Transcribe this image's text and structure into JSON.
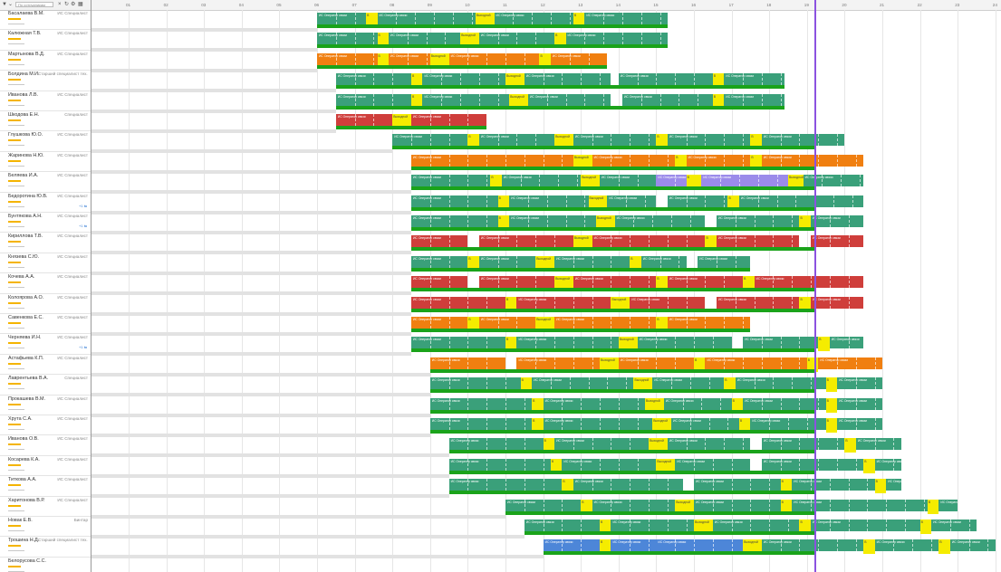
{
  "filter": {
    "search_placeholder": "По сотрудникам",
    "icon_filter": "filter-icon",
    "icon_refresh": "refresh-icon",
    "icon_settings": "settings-icon"
  },
  "ruler_days": [
    "01",
    "02",
    "03",
    "04",
    "05",
    "06",
    "07",
    "08",
    "09",
    "10",
    "11",
    "12",
    "13",
    "14",
    "15",
    "16",
    "17",
    "18",
    "19",
    "20",
    "21",
    "22",
    "23",
    "24"
  ],
  "colors": {
    "teal": "#3aa07a",
    "orange": "#f07f10",
    "red": "#cf3e3b",
    "purple": "#9b8bea",
    "blue": "#4d86d8",
    "lightblue": "#8ab5ea",
    "yellow": "#f5ec00",
    "green": "#1aa31a",
    "today_line": "#8b52e0"
  },
  "people": [
    {
      "name": "Басалаева В.М.",
      "role": "ИС Специалист"
    },
    {
      "name": "Калюжная Т.В.",
      "role": "ИС Специалист"
    },
    {
      "name": "Мартынова В.Д.",
      "role": "ИС Специалист"
    },
    {
      "name": "Болдина М.И.",
      "role": "Старший специалист тех..."
    },
    {
      "name": "Иванова Л.В.",
      "role": "ИС Специалист"
    },
    {
      "name": "Шкодова Е.Н.",
      "role": "Специалист"
    },
    {
      "name": "Глушкова Ю.О.",
      "role": "ИС Специалист"
    },
    {
      "name": "Жаринова Н.Ю.",
      "role": "ИС Специалист"
    },
    {
      "name": "Беляева И.А.",
      "role": "ИС Специалист"
    },
    {
      "name": "Бедоротина Ю.В.",
      "role": "ИС Специалист",
      "extra": "+1 ⇆"
    },
    {
      "name": "Бунтякова А.Н.",
      "role": "ИС Специалист",
      "extra": "+1 ⇆"
    },
    {
      "name": "Кириллова Т.В.",
      "role": "ИС Специалист"
    },
    {
      "name": "Князева С.Ю.",
      "role": "ИС Специалист"
    },
    {
      "name": "Кочева А.А.",
      "role": "ИС Специалист"
    },
    {
      "name": "Колоярова А.О.",
      "role": "ИС Специалист"
    },
    {
      "name": "Савенкова Е.С.",
      "role": "ИС Специалист"
    },
    {
      "name": "Черняева И.Н.",
      "role": "ИС Специалист",
      "extra": "+1 ⇆"
    },
    {
      "name": "Астафьева К.П.",
      "role": "ИС Специалист"
    },
    {
      "name": "Лаврентьева В.А.",
      "role": "Специалист"
    },
    {
      "name": "Прокашева В.М.",
      "role": "ИС Специалист"
    },
    {
      "name": "Хрута С.А.",
      "role": "ИС Специалист"
    },
    {
      "name": "Иванова О.В.",
      "role": "ИС Специалист"
    },
    {
      "name": "Косарева К.А.",
      "role": "ИС Специалист"
    },
    {
      "name": "Титкова А.А.",
      "role": "ИС Специалист"
    },
    {
      "name": "Харитонова В.Р.",
      "role": "ИС Специалист"
    },
    {
      "name": "Новак Е.В.",
      "role": "Бинтар"
    },
    {
      "name": "Трошина Н.Д.",
      "role": "Старший специалист тех..."
    },
    {
      "name": "Белорусова С.С.",
      "role": ""
    }
  ],
  "rows": [
    {
      "segs": [
        [
          "teal",
          6.0,
          7.3
        ],
        [
          "teal",
          7.6,
          10.2
        ],
        [
          "teal",
          10.7,
          12.8
        ],
        [
          "teal",
          13.1,
          15.3
        ]
      ],
      "ybox": [
        [
          7.3,
          7.6,
          "B"
        ],
        [
          10.2,
          10.7,
          "Выходной"
        ],
        [
          12.8,
          13.1,
          "В"
        ]
      ]
    },
    {
      "segs": [
        [
          "teal",
          6.0,
          7.6
        ],
        [
          "teal",
          7.9,
          9.8
        ],
        [
          "teal",
          10.3,
          12.3
        ],
        [
          "teal",
          12.6,
          15.3
        ]
      ],
      "ybox": [
        [
          7.6,
          7.9,
          "B"
        ],
        [
          9.8,
          10.3,
          "Выходной"
        ],
        [
          12.3,
          12.6,
          "В"
        ]
      ]
    },
    {
      "segs": [
        [
          "orange",
          6.0,
          7.6
        ],
        [
          "orange",
          7.9,
          9.0
        ],
        [
          "orange",
          9.5,
          11.9
        ],
        [
          "orange",
          12.2,
          13.7
        ]
      ],
      "ybox": [
        [
          7.6,
          7.9,
          "B"
        ],
        [
          9.0,
          9.5,
          "Выходной"
        ],
        [
          11.9,
          12.2,
          "В"
        ]
      ]
    },
    {
      "segs": [
        [
          "teal",
          6.5,
          8.5
        ],
        [
          "teal",
          8.8,
          11.0
        ],
        [
          "teal",
          11.5,
          13.8
        ],
        [
          "teal",
          14.0,
          16.5
        ],
        [
          "teal",
          16.8,
          18.4
        ]
      ],
      "ybox": [
        [
          8.5,
          8.8,
          "B"
        ],
        [
          11.0,
          11.5,
          "Выходной"
        ],
        [
          16.5,
          16.8,
          "В"
        ]
      ]
    },
    {
      "segs": [
        [
          "teal",
          6.5,
          8.5
        ],
        [
          "teal",
          8.8,
          11.1
        ],
        [
          "teal",
          11.6,
          13.8
        ],
        [
          "teal",
          14.1,
          16.5
        ],
        [
          "teal",
          16.8,
          18.4
        ]
      ],
      "ybox": [
        [
          8.5,
          8.8,
          "B"
        ],
        [
          11.1,
          11.6,
          "Выходной"
        ],
        [
          16.5,
          16.8,
          "В"
        ]
      ]
    },
    {
      "segs": [
        [
          "red",
          6.5,
          8.0
        ],
        [
          "red",
          8.5,
          10.5
        ]
      ],
      "ybox": [
        [
          8.0,
          8.5,
          "Выходной"
        ]
      ]
    },
    {
      "segs": [
        [
          "teal",
          8.0,
          10.0
        ],
        [
          "teal",
          10.3,
          12.3
        ],
        [
          "teal",
          12.8,
          15.0
        ],
        [
          "teal",
          15.3,
          17.5
        ],
        [
          "teal",
          17.8,
          20.0
        ]
      ],
      "ybox": [
        [
          10.0,
          10.3,
          "B"
        ],
        [
          12.3,
          12.8,
          "Выходной"
        ],
        [
          15.0,
          15.3,
          "В"
        ],
        [
          17.5,
          17.8,
          "В"
        ]
      ]
    },
    {
      "segs": [
        [
          "orange",
          8.5,
          12.8
        ],
        [
          "orange",
          13.3,
          15.5
        ],
        [
          "orange",
          15.8,
          17.5
        ],
        [
          "orange",
          17.8,
          20.5
        ]
      ],
      "ybox": [
        [
          12.8,
          13.3,
          "Выходной"
        ],
        [
          15.5,
          15.8,
          "В"
        ],
        [
          17.5,
          17.8,
          "В"
        ]
      ]
    },
    {
      "segs": [
        [
          "teal",
          8.5,
          10.6
        ],
        [
          "teal",
          10.9,
          13.0
        ],
        [
          "teal",
          13.5,
          15.0
        ],
        [
          "purple",
          15.0,
          15.8
        ],
        [
          "purple",
          16.2,
          18.5
        ],
        [
          "teal",
          18.9,
          20.5
        ]
      ],
      "ybox": [
        [
          10.6,
          10.9,
          "B"
        ],
        [
          13.0,
          13.5,
          "Выходной"
        ],
        [
          15.8,
          16.2,
          "В"
        ],
        [
          18.5,
          18.9,
          "Выходной"
        ]
      ]
    },
    {
      "segs": [
        [
          "teal",
          8.5,
          10.8
        ],
        [
          "teal",
          11.1,
          13.2
        ],
        [
          "teal",
          13.7,
          15.0
        ],
        [
          "teal",
          15.3,
          16.9
        ],
        [
          "teal",
          17.2,
          20.5
        ]
      ],
      "ybox": [
        [
          10.8,
          11.1,
          "B"
        ],
        [
          13.2,
          13.7,
          "Выходной"
        ],
        [
          16.9,
          17.2,
          "В"
        ]
      ]
    },
    {
      "segs": [
        [
          "teal",
          8.5,
          10.8
        ],
        [
          "teal",
          11.1,
          13.4
        ],
        [
          "teal",
          13.9,
          16.3
        ],
        [
          "teal",
          16.6,
          18.8
        ],
        [
          "teal",
          19.1,
          20.5
        ]
      ],
      "ybox": [
        [
          10.8,
          11.1,
          "B"
        ],
        [
          13.4,
          13.9,
          "Выходной"
        ],
        [
          18.8,
          19.1,
          "В"
        ]
      ]
    },
    {
      "segs": [
        [
          "red",
          8.5,
          10.0
        ],
        [
          "red",
          10.3,
          12.8
        ],
        [
          "red",
          13.3,
          16.3
        ],
        [
          "red",
          16.6,
          18.8
        ],
        [
          "red",
          19.1,
          20.5
        ]
      ],
      "ybox": [
        [
          12.8,
          13.3,
          "Выходной"
        ],
        [
          16.3,
          16.6,
          "В"
        ]
      ]
    },
    {
      "segs": [
        [
          "teal",
          8.5,
          10.0
        ],
        [
          "teal",
          10.3,
          11.8
        ],
        [
          "teal",
          12.3,
          14.3
        ],
        [
          "teal",
          14.6,
          15.8
        ],
        [
          "teal",
          16.1,
          17.5
        ]
      ],
      "ybox": [
        [
          10.0,
          10.3,
          "B"
        ],
        [
          11.8,
          12.3,
          "Выходной"
        ],
        [
          14.3,
          14.6,
          "В"
        ]
      ]
    },
    {
      "segs": [
        [
          "red",
          8.5,
          10.0
        ],
        [
          "red",
          10.3,
          12.3
        ],
        [
          "red",
          12.8,
          15.0
        ],
        [
          "red",
          15.3,
          17.3
        ],
        [
          "red",
          17.6,
          20.5
        ]
      ],
      "ybox": [
        [
          12.3,
          12.8,
          "Выходной"
        ],
        [
          15.0,
          15.3,
          "В"
        ],
        [
          17.3,
          17.6,
          "В"
        ]
      ]
    },
    {
      "segs": [
        [
          "red",
          8.5,
          11.0
        ],
        [
          "red",
          11.3,
          13.8
        ],
        [
          "red",
          14.3,
          16.3
        ],
        [
          "red",
          16.6,
          18.8
        ],
        [
          "red",
          19.1,
          20.5
        ]
      ],
      "ybox": [
        [
          11.0,
          11.3,
          "B"
        ],
        [
          13.8,
          14.3,
          "Выходной"
        ],
        [
          18.8,
          19.1,
          "В"
        ]
      ]
    },
    {
      "segs": [
        [
          "orange",
          8.5,
          10.0
        ],
        [
          "orange",
          10.3,
          11.8
        ],
        [
          "orange",
          12.3,
          15.0
        ],
        [
          "orange",
          15.3,
          17.5
        ]
      ],
      "ybox": [
        [
          10.0,
          10.3,
          "B"
        ],
        [
          11.8,
          12.3,
          "Выходной"
        ],
        [
          15.0,
          15.3,
          "В"
        ]
      ]
    },
    {
      "segs": [
        [
          "teal",
          8.5,
          11.0
        ],
        [
          "teal",
          11.3,
          14.0
        ],
        [
          "teal",
          14.5,
          17.0
        ],
        [
          "teal",
          17.3,
          19.3
        ],
        [
          "teal",
          19.6,
          20.5
        ]
      ],
      "ybox": [
        [
          11.0,
          11.3,
          "B"
        ],
        [
          14.0,
          14.5,
          "Выходной"
        ],
        [
          19.3,
          19.6,
          "В"
        ]
      ]
    },
    {
      "segs": [
        [
          "orange",
          9.0,
          11.0
        ],
        [
          "orange",
          11.3,
          13.5
        ],
        [
          "orange",
          14.0,
          16.0
        ],
        [
          "orange",
          16.3,
          19.0
        ],
        [
          "orange",
          19.3,
          21.0
        ]
      ],
      "ybox": [
        [
          13.5,
          14.0,
          "Выходной"
        ],
        [
          16.0,
          16.3,
          "В"
        ],
        [
          19.0,
          19.3,
          "В"
        ]
      ]
    },
    {
      "segs": [
        [
          "teal",
          9.0,
          11.4
        ],
        [
          "teal",
          11.7,
          14.4
        ],
        [
          "teal",
          14.9,
          16.8
        ],
        [
          "teal",
          17.1,
          19.5
        ],
        [
          "teal",
          19.8,
          21.0
        ]
      ],
      "ybox": [
        [
          11.4,
          11.7,
          "B"
        ],
        [
          14.4,
          14.9,
          "Выходной"
        ],
        [
          16.8,
          17.1,
          "В"
        ],
        [
          19.5,
          19.8,
          "В"
        ]
      ]
    },
    {
      "segs": [
        [
          "teal",
          9.0,
          11.7
        ],
        [
          "teal",
          12.0,
          14.7
        ],
        [
          "teal",
          15.2,
          17.0
        ],
        [
          "teal",
          17.3,
          19.5
        ],
        [
          "teal",
          19.8,
          21.0
        ]
      ],
      "ybox": [
        [
          11.7,
          12.0,
          "B"
        ],
        [
          14.7,
          15.2,
          "Выходной"
        ],
        [
          17.0,
          17.3,
          "В"
        ],
        [
          19.5,
          19.8,
          "В"
        ]
      ]
    },
    {
      "segs": [
        [
          "teal",
          9.0,
          11.7
        ],
        [
          "teal",
          12.0,
          14.9
        ],
        [
          "teal",
          15.4,
          17.2
        ],
        [
          "teal",
          17.5,
          19.5
        ],
        [
          "teal",
          19.8,
          21.0
        ]
      ],
      "ybox": [
        [
          11.7,
          12.0,
          "B"
        ],
        [
          14.9,
          15.4,
          "Выходной"
        ],
        [
          17.2,
          17.5,
          "В"
        ],
        [
          19.5,
          19.8,
          "В"
        ]
      ]
    },
    {
      "segs": [
        [
          "teal",
          9.5,
          12.0
        ],
        [
          "teal",
          12.3,
          14.8
        ],
        [
          "teal",
          15.3,
          17.5
        ],
        [
          "teal",
          17.8,
          20.0
        ],
        [
          "teal",
          20.3,
          21.5
        ]
      ],
      "ybox": [
        [
          12.0,
          12.3,
          "B"
        ],
        [
          14.8,
          15.3,
          "Выходной"
        ],
        [
          20.0,
          20.3,
          "В"
        ]
      ]
    },
    {
      "segs": [
        [
          "teal",
          9.5,
          12.2
        ],
        [
          "teal",
          12.5,
          15.0
        ],
        [
          "teal",
          15.5,
          17.5
        ],
        [
          "teal",
          17.8,
          20.5
        ],
        [
          "teal",
          20.8,
          21.5
        ]
      ],
      "ybox": [
        [
          12.2,
          12.5,
          "B"
        ],
        [
          15.0,
          15.5,
          "Выходной"
        ],
        [
          20.5,
          20.8,
          "В"
        ]
      ]
    },
    {
      "segs": [
        [
          "teal",
          9.5,
          12.5
        ],
        [
          "teal",
          12.8,
          15.7
        ],
        [
          "teal",
          16.0,
          18.3
        ],
        [
          "teal",
          18.6,
          20.8
        ],
        [
          "teal",
          21.1,
          21.5
        ]
      ],
      "ybox": [
        [
          12.5,
          12.8,
          "B"
        ],
        [
          18.3,
          18.6,
          "В"
        ],
        [
          20.8,
          21.1,
          "В"
        ]
      ]
    },
    {
      "segs": [
        [
          "teal",
          11.0,
          13.0
        ],
        [
          "teal",
          13.3,
          15.5
        ],
        [
          "teal",
          16.0,
          18.3
        ],
        [
          "teal",
          18.6,
          22.2
        ],
        [
          "teal",
          22.5,
          23.0
        ]
      ],
      "ybox": [
        [
          13.0,
          13.3,
          "B"
        ],
        [
          15.5,
          16.0,
          "Выходной"
        ],
        [
          18.3,
          18.6,
          "В"
        ],
        [
          22.2,
          22.5,
          "В"
        ]
      ]
    },
    {
      "segs": [
        [
          "teal",
          11.5,
          13.5
        ],
        [
          "teal",
          13.8,
          16.0
        ],
        [
          "teal",
          16.5,
          18.8
        ],
        [
          "teal",
          19.1,
          22.0
        ],
        [
          "teal",
          22.3,
          23.5
        ]
      ],
      "ybox": [
        [
          13.5,
          13.8,
          "B"
        ],
        [
          16.0,
          16.5,
          "Выходной"
        ],
        [
          18.8,
          19.1,
          "В"
        ],
        [
          22.0,
          22.3,
          "В"
        ]
      ]
    },
    {
      "segs": [
        [
          "blue",
          12.0,
          13.5
        ],
        [
          "blue",
          13.8,
          15.0
        ],
        [
          "blue",
          15.0,
          17.3
        ],
        [
          "teal",
          17.8,
          20.5
        ],
        [
          "teal",
          20.8,
          22.5
        ],
        [
          "teal",
          22.8,
          24.0
        ]
      ],
      "ybox": [
        [
          13.5,
          13.8,
          "B"
        ],
        [
          17.3,
          17.8,
          "Выходной"
        ],
        [
          20.5,
          20.8,
          "В"
        ],
        [
          22.5,
          22.8,
          "В"
        ]
      ]
    },
    {
      "segs": [],
      "ybox": []
    }
  ],
  "segment_label": "ИС Оператор связи",
  "today_day": 19.2
}
